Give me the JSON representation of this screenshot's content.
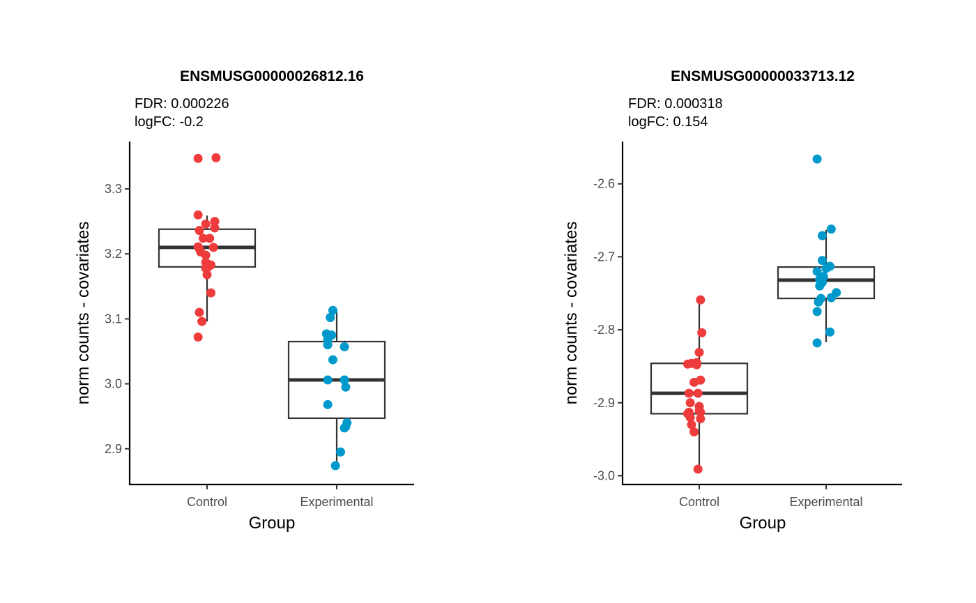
{
  "colors": {
    "Control": "#EE3B3B",
    "Experimental": "#0099CC"
  },
  "chart_data": [
    {
      "type": "box+jitter",
      "title": "ENSMUSG00000026812.16",
      "subtitle": [
        "FDR: 0.000226",
        "logFC: -0.2"
      ],
      "xlabel": "Group",
      "ylabel": "norm counts - covariates",
      "categories": [
        "Control",
        "Experimental"
      ],
      "ylim": [
        2.845,
        3.373
      ],
      "yticks": [
        2.9,
        3.0,
        3.1,
        3.2,
        3.3
      ],
      "ytick_labels": [
        "2.9",
        "3.0",
        "3.1",
        "3.2",
        "3.3"
      ],
      "boxes": [
        {
          "category": "Control",
          "whisker_low": 3.096,
          "q1": 3.18,
          "median": 3.21,
          "q3": 3.238,
          "whisker_high": 3.259
        },
        {
          "category": "Experimental",
          "whisker_low": 2.874,
          "q1": 2.947,
          "median": 3.006,
          "q3": 3.065,
          "whisker_high": 3.112
        }
      ],
      "points": [
        {
          "category": "Control",
          "jitter": -0.07,
          "y": 3.347
        },
        {
          "category": "Control",
          "jitter": 0.07,
          "y": 3.348
        },
        {
          "category": "Control",
          "jitter": -0.07,
          "y": 3.26
        },
        {
          "category": "Control",
          "jitter": 0.06,
          "y": 3.25
        },
        {
          "category": "Control",
          "jitter": -0.01,
          "y": 3.246
        },
        {
          "category": "Control",
          "jitter": 0.06,
          "y": 3.24
        },
        {
          "category": "Control",
          "jitter": -0.06,
          "y": 3.236
        },
        {
          "category": "Control",
          "jitter": -0.03,
          "y": 3.224
        },
        {
          "category": "Control",
          "jitter": 0.02,
          "y": 3.224
        },
        {
          "category": "Control",
          "jitter": -0.07,
          "y": 3.211
        },
        {
          "category": "Control",
          "jitter": -0.06,
          "y": 3.208
        },
        {
          "category": "Control",
          "jitter": 0.05,
          "y": 3.21
        },
        {
          "category": "Control",
          "jitter": -0.05,
          "y": 3.203
        },
        {
          "category": "Control",
          "jitter": -0.01,
          "y": 3.198
        },
        {
          "category": "Control",
          "jitter": -0.01,
          "y": 3.187
        },
        {
          "category": "Control",
          "jitter": 0.03,
          "y": 3.183
        },
        {
          "category": "Control",
          "jitter": 0.01,
          "y": 3.18
        },
        {
          "category": "Control",
          "jitter": -0.01,
          "y": 3.178
        },
        {
          "category": "Control",
          "jitter": 0.0,
          "y": 3.168
        },
        {
          "category": "Control",
          "jitter": 0.03,
          "y": 3.14
        },
        {
          "category": "Control",
          "jitter": -0.06,
          "y": 3.11
        },
        {
          "category": "Control",
          "jitter": -0.04,
          "y": 3.096
        },
        {
          "category": "Control",
          "jitter": -0.07,
          "y": 3.072
        },
        {
          "category": "Experimental",
          "jitter": -0.03,
          "y": 3.113
        },
        {
          "category": "Experimental",
          "jitter": -0.05,
          "y": 3.102
        },
        {
          "category": "Experimental",
          "jitter": -0.08,
          "y": 3.077
        },
        {
          "category": "Experimental",
          "jitter": -0.04,
          "y": 3.075
        },
        {
          "category": "Experimental",
          "jitter": -0.07,
          "y": 3.068
        },
        {
          "category": "Experimental",
          "jitter": -0.07,
          "y": 3.06
        },
        {
          "category": "Experimental",
          "jitter": 0.06,
          "y": 3.057
        },
        {
          "category": "Experimental",
          "jitter": -0.03,
          "y": 3.037
        },
        {
          "category": "Experimental",
          "jitter": -0.07,
          "y": 3.006
        },
        {
          "category": "Experimental",
          "jitter": 0.06,
          "y": 3.006
        },
        {
          "category": "Experimental",
          "jitter": 0.07,
          "y": 2.995
        },
        {
          "category": "Experimental",
          "jitter": -0.07,
          "y": 2.968
        },
        {
          "category": "Experimental",
          "jitter": 0.08,
          "y": 2.94
        },
        {
          "category": "Experimental",
          "jitter": 0.06,
          "y": 2.932
        },
        {
          "category": "Experimental",
          "jitter": 0.07,
          "y": 2.934
        },
        {
          "category": "Experimental",
          "jitter": 0.03,
          "y": 2.895
        },
        {
          "category": "Experimental",
          "jitter": -0.01,
          "y": 2.874
        }
      ]
    },
    {
      "type": "box+jitter",
      "title": "ENSMUSG00000033713.12",
      "subtitle": [
        "FDR: 0.000318",
        "logFC: 0.154"
      ],
      "xlabel": "Group",
      "ylabel": "norm counts - covariates",
      "categories": [
        "Control",
        "Experimental"
      ],
      "ylim": [
        -3.012,
        -2.542
      ],
      "yticks": [
        -3.0,
        -2.9,
        -2.8,
        -2.7,
        -2.6
      ],
      "ytick_labels": [
        "-3.0",
        "-2.9",
        "-2.8",
        "-2.7",
        "-2.6"
      ],
      "boxes": [
        {
          "category": "Control",
          "whisker_low": -2.991,
          "q1": -2.915,
          "median": -2.887,
          "q3": -2.846,
          "whisker_high": -2.76
        },
        {
          "category": "Experimental",
          "whisker_low": -2.817,
          "q1": -2.757,
          "median": -2.732,
          "q3": -2.714,
          "whisker_high": -2.663
        }
      ],
      "points": [
        {
          "category": "Control",
          "jitter": 0.01,
          "y": -2.759
        },
        {
          "category": "Control",
          "jitter": 0.02,
          "y": -2.804
        },
        {
          "category": "Control",
          "jitter": 0.0,
          "y": -2.831
        },
        {
          "category": "Control",
          "jitter": -0.09,
          "y": -2.847
        },
        {
          "category": "Control",
          "jitter": -0.02,
          "y": -2.848
        },
        {
          "category": "Control",
          "jitter": -0.06,
          "y": -2.846
        },
        {
          "category": "Control",
          "jitter": -0.02,
          "y": -2.845
        },
        {
          "category": "Control",
          "jitter": 0.01,
          "y": -2.869
        },
        {
          "category": "Control",
          "jitter": -0.04,
          "y": -2.872
        },
        {
          "category": "Control",
          "jitter": -0.08,
          "y": -2.887
        },
        {
          "category": "Control",
          "jitter": -0.01,
          "y": -2.887
        },
        {
          "category": "Control",
          "jitter": -0.07,
          "y": -2.9
        },
        {
          "category": "Control",
          "jitter": 0.0,
          "y": -2.905
        },
        {
          "category": "Control",
          "jitter": 0.0,
          "y": -2.911
        },
        {
          "category": "Control",
          "jitter": -0.09,
          "y": -2.915
        },
        {
          "category": "Control",
          "jitter": -0.08,
          "y": -2.913
        },
        {
          "category": "Control",
          "jitter": 0.01,
          "y": -2.913
        },
        {
          "category": "Control",
          "jitter": -0.07,
          "y": -2.92
        },
        {
          "category": "Control",
          "jitter": 0.01,
          "y": -2.922
        },
        {
          "category": "Control",
          "jitter": -0.06,
          "y": -2.93
        },
        {
          "category": "Control",
          "jitter": -0.04,
          "y": -2.94
        },
        {
          "category": "Control",
          "jitter": -0.01,
          "y": -2.991
        },
        {
          "category": "Experimental",
          "jitter": -0.07,
          "y": -2.566
        },
        {
          "category": "Experimental",
          "jitter": 0.04,
          "y": -2.662
        },
        {
          "category": "Experimental",
          "jitter": -0.03,
          "y": -2.671
        },
        {
          "category": "Experimental",
          "jitter": -0.03,
          "y": -2.705
        },
        {
          "category": "Experimental",
          "jitter": 0.03,
          "y": -2.713
        },
        {
          "category": "Experimental",
          "jitter": 0.0,
          "y": -2.716
        },
        {
          "category": "Experimental",
          "jitter": -0.07,
          "y": -2.72
        },
        {
          "category": "Experimental",
          "jitter": -0.02,
          "y": -2.727
        },
        {
          "category": "Experimental",
          "jitter": -0.05,
          "y": -2.731
        },
        {
          "category": "Experimental",
          "jitter": -0.03,
          "y": -2.735
        },
        {
          "category": "Experimental",
          "jitter": -0.05,
          "y": -2.74
        },
        {
          "category": "Experimental",
          "jitter": 0.08,
          "y": -2.749
        },
        {
          "category": "Experimental",
          "jitter": 0.04,
          "y": -2.756
        },
        {
          "category": "Experimental",
          "jitter": -0.04,
          "y": -2.757
        },
        {
          "category": "Experimental",
          "jitter": -0.06,
          "y": -2.762
        },
        {
          "category": "Experimental",
          "jitter": -0.07,
          "y": -2.775
        },
        {
          "category": "Experimental",
          "jitter": 0.03,
          "y": -2.803
        },
        {
          "category": "Experimental",
          "jitter": -0.07,
          "y": -2.818
        }
      ]
    }
  ]
}
